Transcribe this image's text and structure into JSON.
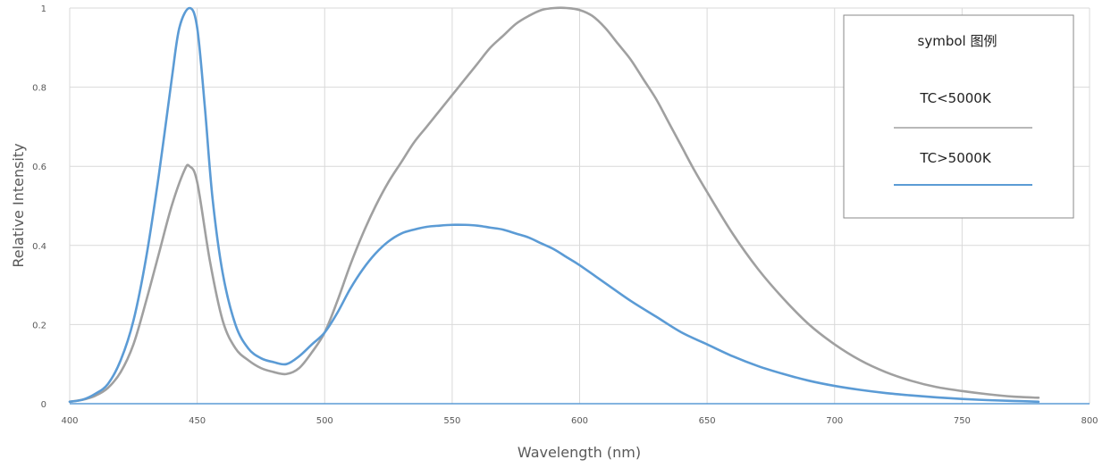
{
  "chart_data": {
    "type": "line",
    "xlabel": "Wavelength (nm)",
    "ylabel": "Relative Intensity",
    "xlim": [
      400,
      800
    ],
    "ylim": [
      0,
      1
    ],
    "x_ticks": [
      "400",
      "450",
      "500",
      "550",
      "600",
      "650",
      "700",
      "750",
      "800"
    ],
    "y_ticks": [
      "0",
      "0.2",
      "0.4",
      "0.6",
      "0.8",
      "1"
    ],
    "grid": true,
    "legend": {
      "title": "symbol 图例",
      "placement": "top-right",
      "entries": [
        "TC<5000K",
        "TC>5000K"
      ]
    },
    "series": [
      {
        "name": "TC<5000K",
        "color": "#a0a0a0",
        "x": [
          400,
          405,
          410,
          415,
          420,
          425,
          430,
          435,
          440,
          445,
          447,
          450,
          455,
          460,
          465,
          470,
          475,
          480,
          485,
          490,
          495,
          500,
          505,
          510,
          515,
          520,
          525,
          530,
          535,
          540,
          545,
          550,
          555,
          560,
          565,
          570,
          575,
          580,
          585,
          590,
          595,
          600,
          605,
          610,
          615,
          620,
          625,
          630,
          635,
          640,
          645,
          650,
          660,
          670,
          680,
          690,
          700,
          710,
          720,
          730,
          740,
          750,
          760,
          770,
          780
        ],
        "values": [
          0.005,
          0.01,
          0.02,
          0.04,
          0.08,
          0.15,
          0.26,
          0.38,
          0.5,
          0.59,
          0.6,
          0.56,
          0.36,
          0.21,
          0.14,
          0.11,
          0.09,
          0.08,
          0.075,
          0.09,
          0.13,
          0.18,
          0.26,
          0.35,
          0.43,
          0.5,
          0.56,
          0.61,
          0.66,
          0.7,
          0.74,
          0.78,
          0.82,
          0.86,
          0.9,
          0.93,
          0.96,
          0.98,
          0.995,
          1.0,
          1.0,
          0.995,
          0.98,
          0.95,
          0.91,
          0.87,
          0.82,
          0.77,
          0.71,
          0.65,
          0.59,
          0.535,
          0.43,
          0.34,
          0.265,
          0.2,
          0.15,
          0.11,
          0.08,
          0.058,
          0.042,
          0.032,
          0.024,
          0.018,
          0.015
        ]
      },
      {
        "name": "TC>5000K",
        "color": "#5b9bd5",
        "x": [
          400,
          405,
          410,
          415,
          420,
          425,
          430,
          435,
          440,
          443,
          447,
          450,
          453,
          456,
          460,
          465,
          470,
          475,
          480,
          485,
          490,
          495,
          500,
          505,
          510,
          515,
          520,
          525,
          530,
          535,
          540,
          545,
          550,
          555,
          560,
          565,
          570,
          575,
          580,
          585,
          590,
          595,
          600,
          610,
          620,
          630,
          640,
          650,
          660,
          670,
          680,
          690,
          700,
          710,
          720,
          730,
          740,
          750,
          760,
          770,
          780
        ],
        "values": [
          0.005,
          0.01,
          0.025,
          0.05,
          0.11,
          0.21,
          0.37,
          0.58,
          0.82,
          0.95,
          1.0,
          0.95,
          0.75,
          0.52,
          0.33,
          0.2,
          0.14,
          0.115,
          0.105,
          0.1,
          0.12,
          0.15,
          0.18,
          0.23,
          0.29,
          0.34,
          0.38,
          0.41,
          0.43,
          0.44,
          0.447,
          0.45,
          0.452,
          0.452,
          0.45,
          0.445,
          0.44,
          0.43,
          0.42,
          0.405,
          0.39,
          0.37,
          0.35,
          0.305,
          0.26,
          0.22,
          0.18,
          0.15,
          0.12,
          0.095,
          0.075,
          0.058,
          0.045,
          0.035,
          0.027,
          0.021,
          0.016,
          0.012,
          0.009,
          0.007,
          0.005
        ]
      }
    ]
  }
}
